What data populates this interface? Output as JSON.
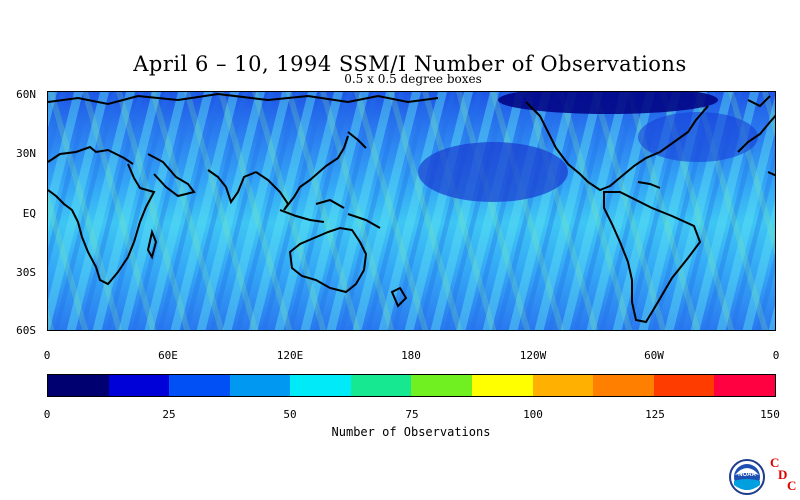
{
  "title": "April 6 – 10, 1994 SSM/I Number of Observations",
  "subtitle": "0.5 x 0.5 degree boxes",
  "y_axis_labels": [
    "60N",
    "30N",
    "EQ",
    "30S",
    "60S"
  ],
  "x_axis_labels": [
    "0",
    "60E",
    "120E",
    "180",
    "120W",
    "60W",
    "0"
  ],
  "colorbar": {
    "colors": [
      "#000070",
      "#0000d8",
      "#0050f5",
      "#0098f0",
      "#00eaf8",
      "#15e890",
      "#70f020",
      "#ffff00",
      "#ffb000",
      "#ff8000",
      "#ff3c00",
      "#ff0040"
    ],
    "tick_labels": [
      "0",
      "25",
      "50",
      "75",
      "100",
      "125",
      "150"
    ],
    "label": "Number of Observations",
    "range": [
      0,
      150
    ]
  },
  "logo": {
    "name": "NOAA",
    "letters": [
      "C",
      "D",
      "C"
    ]
  }
}
